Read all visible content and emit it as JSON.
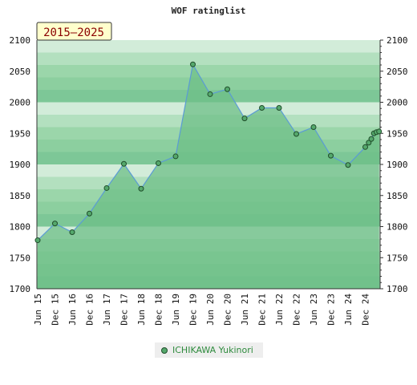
{
  "chart_data": {
    "type": "area",
    "title": "WOF ratinglist",
    "period_label": "2015–2025",
    "xlabel": "",
    "ylabel": "",
    "ylim": [
      1700,
      2100
    ],
    "y_ticks": [
      1700,
      1750,
      1800,
      1850,
      1900,
      1950,
      2000,
      2050,
      2100
    ],
    "x_ticks": [
      "Jun 15",
      "Dec 15",
      "Jun 16",
      "Dec 16",
      "Jun 17",
      "Dec 17",
      "Jun 18",
      "Dec 18",
      "Jun 19",
      "Dec 19",
      "Jun 20",
      "Dec 20",
      "Jun 21",
      "Dec 21",
      "Jun 22",
      "Dec 22",
      "Jun 23",
      "Dec 23",
      "Jun 24",
      "Dec 24"
    ],
    "legend_position": "bottom",
    "grid": true,
    "colors": {
      "band_dark": "#7dc797",
      "band_light": "#f1f8f3",
      "area_fill": "#6dbf87",
      "line": "#5b9bd5",
      "marker": "#55a86c",
      "marker_edge": "#1f4d2a"
    },
    "series": [
      {
        "name": "ICHIKAWA Yukinori",
        "x": [
          0,
          1,
          2,
          3,
          4,
          5,
          6,
          7,
          8,
          9,
          10,
          11,
          12,
          13,
          14,
          15,
          16,
          17,
          18,
          19,
          19.2,
          19.35,
          19.5,
          19.65,
          19.8
        ],
        "values": [
          1778,
          1805,
          1791,
          1821,
          1862,
          1901,
          1861,
          1902,
          1913,
          2061,
          2013,
          2021,
          1974,
          1991,
          1991,
          1949,
          1960,
          1914,
          1899,
          1928,
          1935,
          1941,
          1950,
          1952,
          1953
        ]
      }
    ]
  }
}
